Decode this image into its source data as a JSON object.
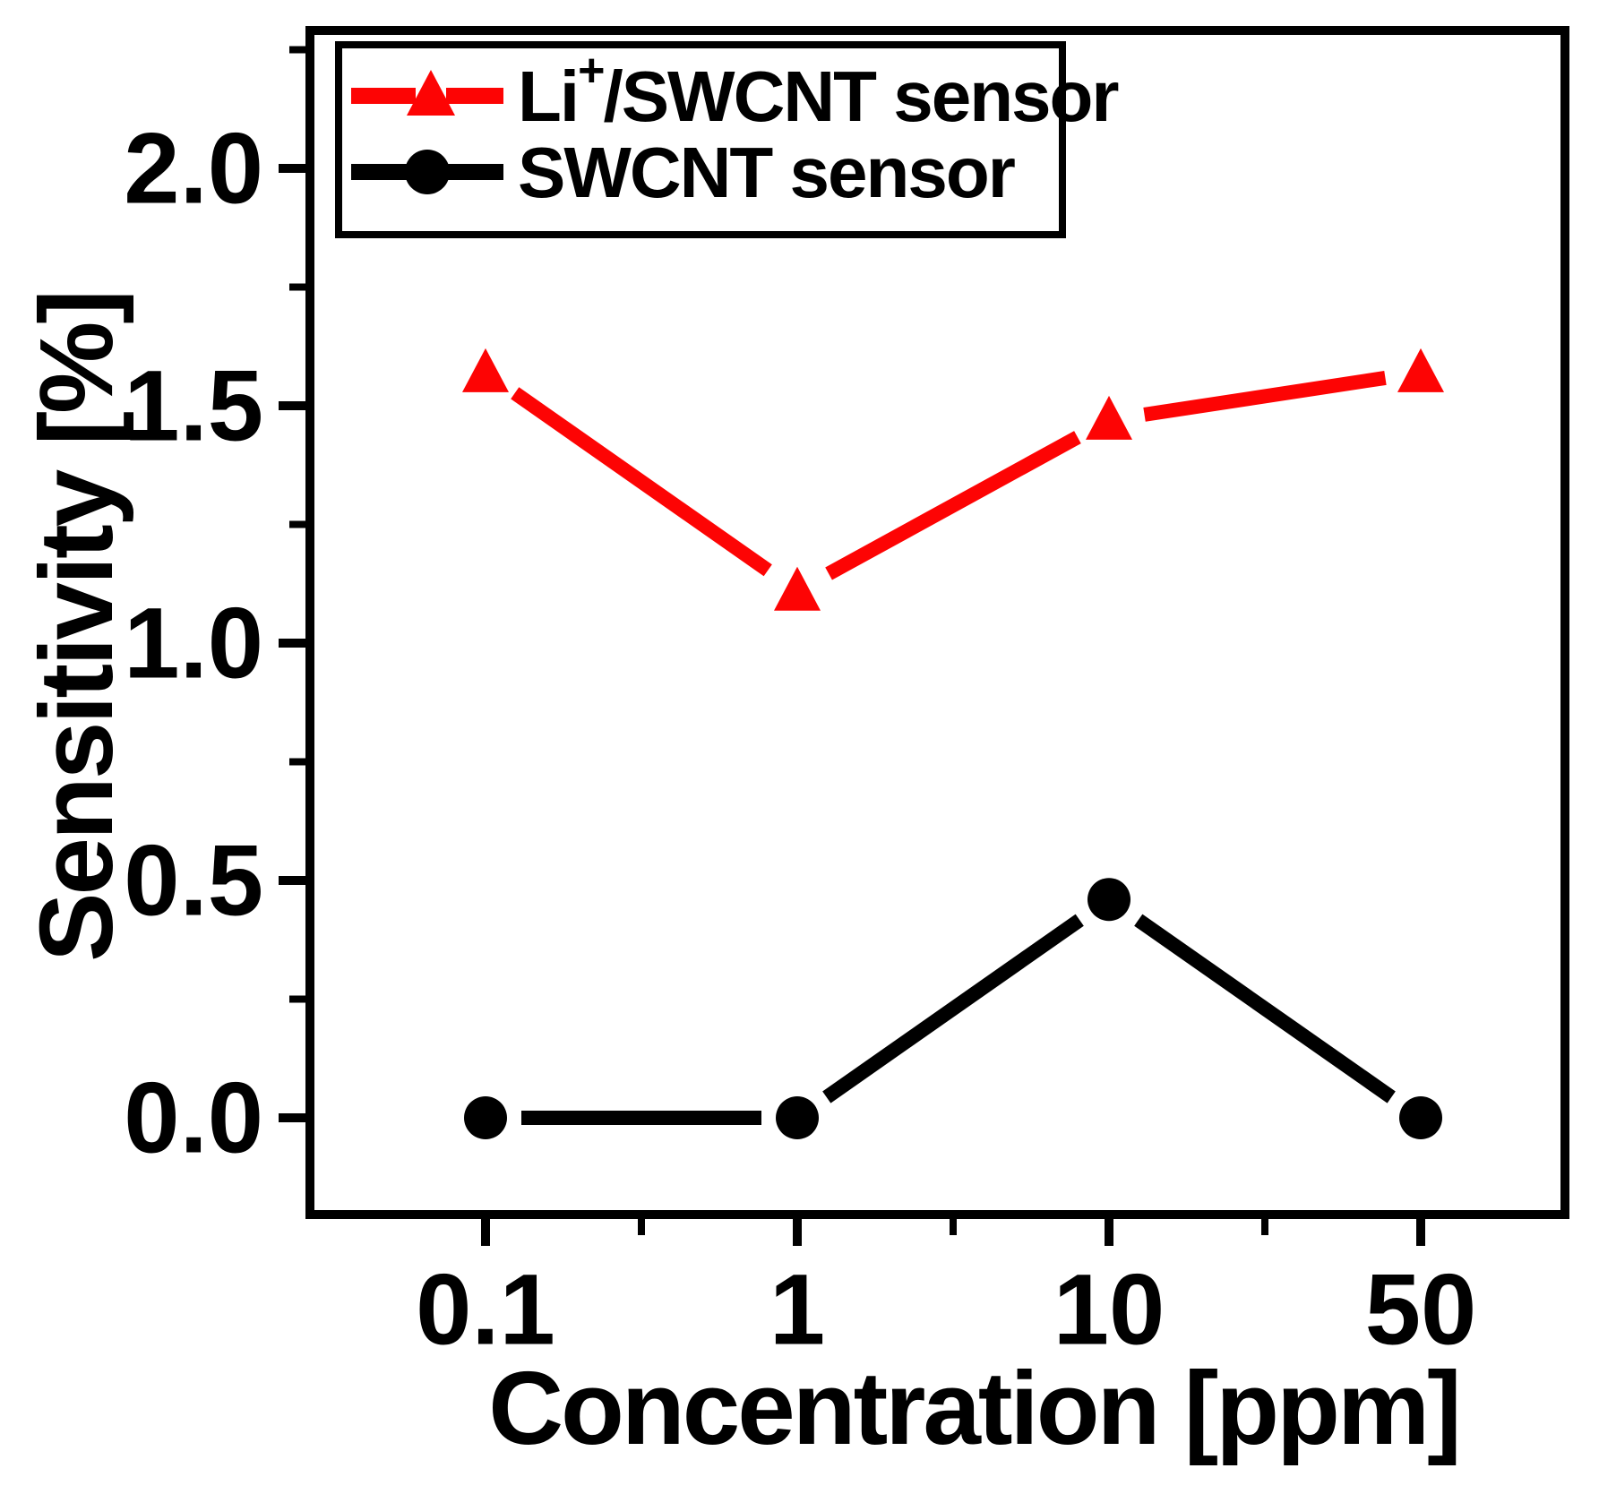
{
  "chart_data": {
    "type": "line",
    "title": "",
    "xlabel": "Concentration [ppm]",
    "ylabel": "Sensitivity [%]",
    "x_categories": [
      0.1,
      1,
      10,
      50
    ],
    "x_tick_labels": [
      "0.1",
      "1",
      "10",
      "50"
    ],
    "x_axis_note": "tick positions equally spaced, minor ticks at midpoints between majors",
    "y_ticks": [
      0.0,
      0.5,
      1.0,
      1.5,
      2.0
    ],
    "y_tick_labels": [
      "0.0",
      "0.5",
      "1.0",
      "1.5",
      "2.0"
    ],
    "y_minor_ticks": [
      0.25,
      0.75,
      1.25,
      1.75,
      2.25
    ],
    "ylim": [
      -0.2,
      2.29
    ],
    "grid": false,
    "legend_position": "top-left",
    "series": [
      {
        "name": "Li⁺/SWCNT sensor",
        "label_parts": {
          "pre": "Li",
          "sup": "+",
          "post": "/SWCNT sensor"
        },
        "color": "#fd0404",
        "marker": "triangle",
        "line_style": "solid",
        "legend_sample": "dashed",
        "values": [
          1.57,
          1.11,
          1.47,
          1.57
        ]
      },
      {
        "name": "SWCNT sensor",
        "label_parts": {
          "pre": "SWCNT sensor",
          "sup": "",
          "post": ""
        },
        "color": "#000000",
        "marker": "circle",
        "line_style": "solid",
        "legend_sample": "solid",
        "values": [
          0.0,
          0.0,
          0.46,
          0.0
        ]
      }
    ]
  }
}
